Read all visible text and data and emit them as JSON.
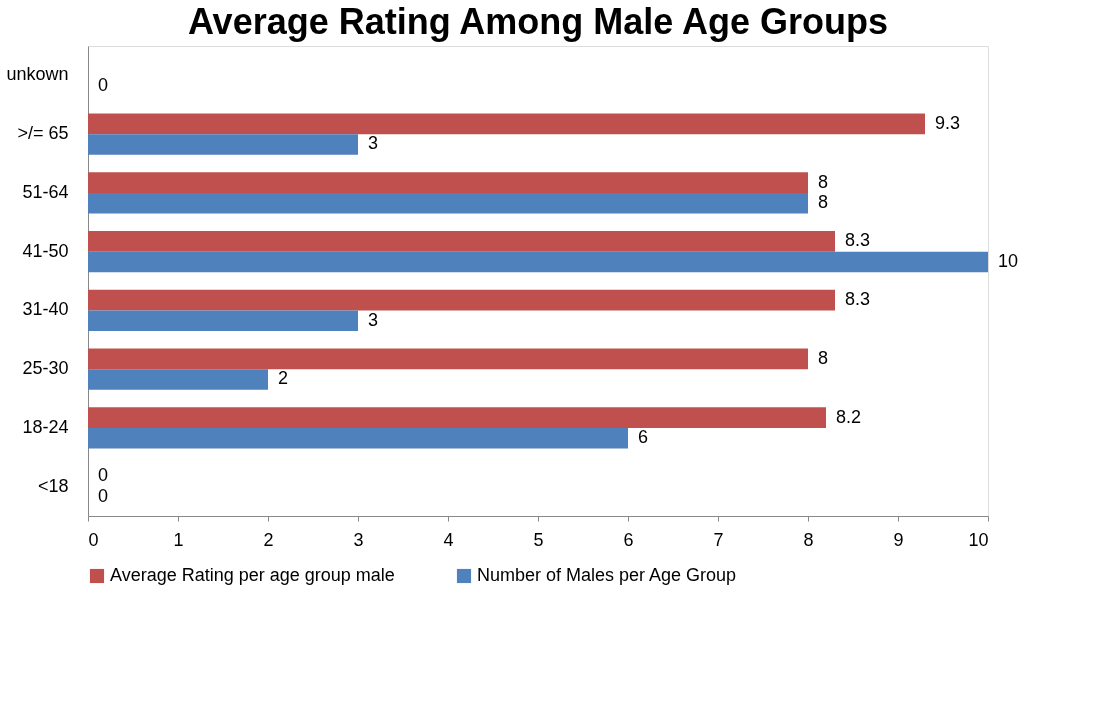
{
  "chart_data": {
    "type": "bar",
    "orientation": "horizontal",
    "title": "Average Rating Among Male Age Groups",
    "categories": [
      "unkown",
      ">/= 65",
      "51-64",
      "41-50",
      "31-40",
      "25-30",
      "18-24",
      "<18"
    ],
    "series": [
      {
        "name": "Average Rating per age group male",
        "color": "#c0504d",
        "values": [
          null,
          9.3,
          8,
          8.3,
          8.3,
          8,
          8.2,
          0
        ]
      },
      {
        "name": "Number of Males per Age Group",
        "color": "#4f81bd",
        "values": [
          0,
          3,
          8,
          10,
          3,
          2,
          6,
          0
        ]
      }
    ],
    "xlim": [
      0,
      10
    ],
    "xticks": [
      0,
      1,
      2,
      3,
      4,
      5,
      6,
      7,
      8,
      9,
      10
    ],
    "data_labels": true,
    "grid": false,
    "legend": "bottom"
  }
}
